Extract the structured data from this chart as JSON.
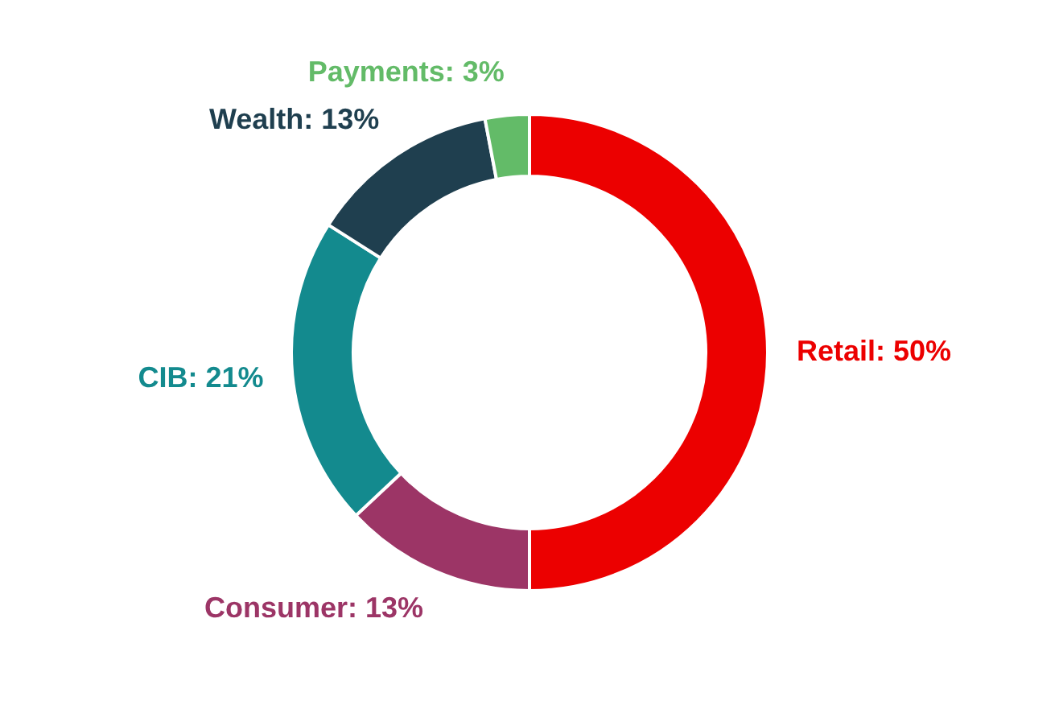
{
  "chart_data": {
    "type": "donut",
    "categories": [
      "Retail",
      "Consumer",
      "CIB",
      "Wealth",
      "Payments"
    ],
    "values": [
      50,
      13,
      21,
      13,
      3
    ],
    "value_labels": [
      "50%",
      "13%",
      "21%",
      "13%",
      "3%"
    ],
    "colors": [
      "#ec0000",
      "#9c3566",
      "#138a8e",
      "#1f3f4f",
      "#63bb68"
    ],
    "legend": false
  }
}
